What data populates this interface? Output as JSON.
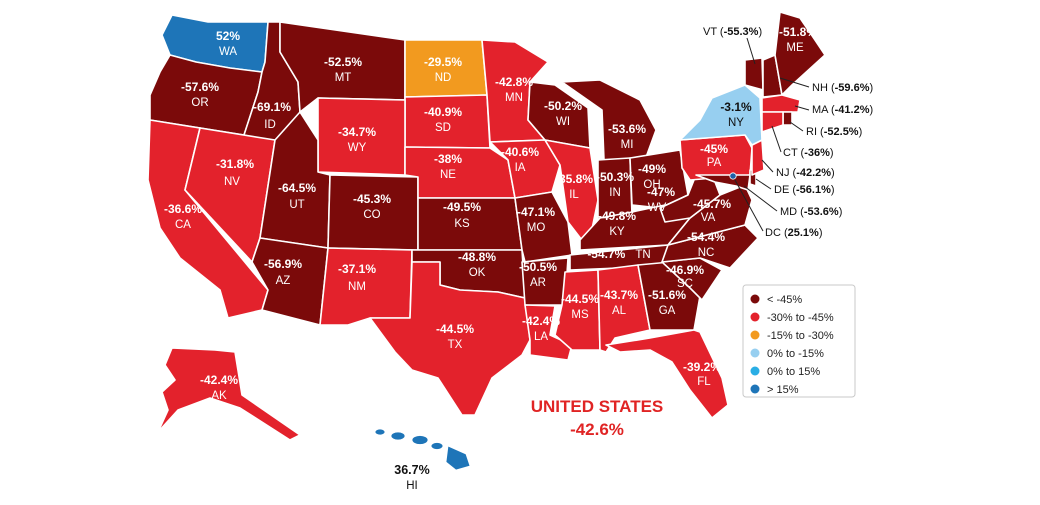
{
  "colors": {
    "lt_neg45": "#7b0a0a",
    "neg30_45": "#e3222c",
    "neg15_30": "#f29a1f",
    "zero_neg15": "#97cff0",
    "zero_15": "#2aaee5",
    "gt15": "#1e75b8",
    "callout_dot": "#1e5fa8"
  },
  "legend": [
    {
      "label": "< -45%",
      "color_key": "lt_neg45"
    },
    {
      "label": "-30% to -45%",
      "color_key": "neg30_45"
    },
    {
      "label": "-15% to -30%",
      "color_key": "neg15_30"
    },
    {
      "label": "0% to -15%",
      "color_key": "zero_neg15"
    },
    {
      "label": "0% to 15%",
      "color_key": "zero_15"
    },
    {
      "label": "> 15%",
      "color_key": "gt15"
    }
  ],
  "national": {
    "title": "UNITED STATES",
    "value": "-42.6%"
  },
  "states": [
    {
      "abbr": "WA",
      "value": "52%"
    },
    {
      "abbr": "OR",
      "value": "-57.6%"
    },
    {
      "abbr": "ID",
      "value": "-69.1%"
    },
    {
      "abbr": "MT",
      "value": "-52.5%"
    },
    {
      "abbr": "ND",
      "value": "-29.5%"
    },
    {
      "abbr": "MN",
      "value": "-42.8%"
    },
    {
      "abbr": "WI",
      "value": "-50.2%"
    },
    {
      "abbr": "MI",
      "value": "-53.6%"
    },
    {
      "abbr": "NY",
      "value": "-3.1%"
    },
    {
      "abbr": "ME",
      "value": "-51.8%"
    },
    {
      "abbr": "SD",
      "value": "-40.9%"
    },
    {
      "abbr": "WY",
      "value": "-34.7%"
    },
    {
      "abbr": "NV",
      "value": "-31.8%"
    },
    {
      "abbr": "CA",
      "value": "-36.6%"
    },
    {
      "abbr": "UT",
      "value": "-64.5%"
    },
    {
      "abbr": "CO",
      "value": "-45.3%"
    },
    {
      "abbr": "NE",
      "value": "-38%"
    },
    {
      "abbr": "IA",
      "value": "-40.6%"
    },
    {
      "abbr": "IL",
      "value": "-35.8%"
    },
    {
      "abbr": "IN",
      "value": "-50.3%"
    },
    {
      "abbr": "OH",
      "value": "-49%"
    },
    {
      "abbr": "PA",
      "value": "-45%"
    },
    {
      "abbr": "KS",
      "value": "-49.5%"
    },
    {
      "abbr": "MO",
      "value": "-47.1%"
    },
    {
      "abbr": "KY",
      "value": "-49.8%"
    },
    {
      "abbr": "WV",
      "value": "-47%"
    },
    {
      "abbr": "VA",
      "value": "-45.7%"
    },
    {
      "abbr": "NC",
      "value": "-54.4%"
    },
    {
      "abbr": "TN",
      "value": "-54.7%"
    },
    {
      "abbr": "AZ",
      "value": "-56.9%"
    },
    {
      "abbr": "NM",
      "value": "-37.1%"
    },
    {
      "abbr": "OK",
      "value": "-48.8%"
    },
    {
      "abbr": "AR",
      "value": "-50.5%"
    },
    {
      "abbr": "SC",
      "value": "-46.9%"
    },
    {
      "abbr": "TX",
      "value": "-44.5%"
    },
    {
      "abbr": "LA",
      "value": "-42.4%"
    },
    {
      "abbr": "MS",
      "value": "-44.5%"
    },
    {
      "abbr": "AL",
      "value": "-43.7%"
    },
    {
      "abbr": "GA",
      "value": "-51.6%"
    },
    {
      "abbr": "FL",
      "value": "-39.2%"
    },
    {
      "abbr": "AK",
      "value": "-42.4%"
    },
    {
      "abbr": "HI",
      "value": "36.7%"
    },
    {
      "abbr": "VT",
      "value": "-55.3%"
    },
    {
      "abbr": "NH",
      "value": "-59.6%"
    },
    {
      "abbr": "MA",
      "value": "-41.2%"
    },
    {
      "abbr": "RI",
      "value": "-52.5%"
    },
    {
      "abbr": "CT",
      "value": "-36%"
    },
    {
      "abbr": "NJ",
      "value": "-42.2%"
    },
    {
      "abbr": "DE",
      "value": "-56.1%"
    },
    {
      "abbr": "MD",
      "value": "-53.6%"
    },
    {
      "abbr": "DC",
      "value": "25.1%"
    }
  ]
}
